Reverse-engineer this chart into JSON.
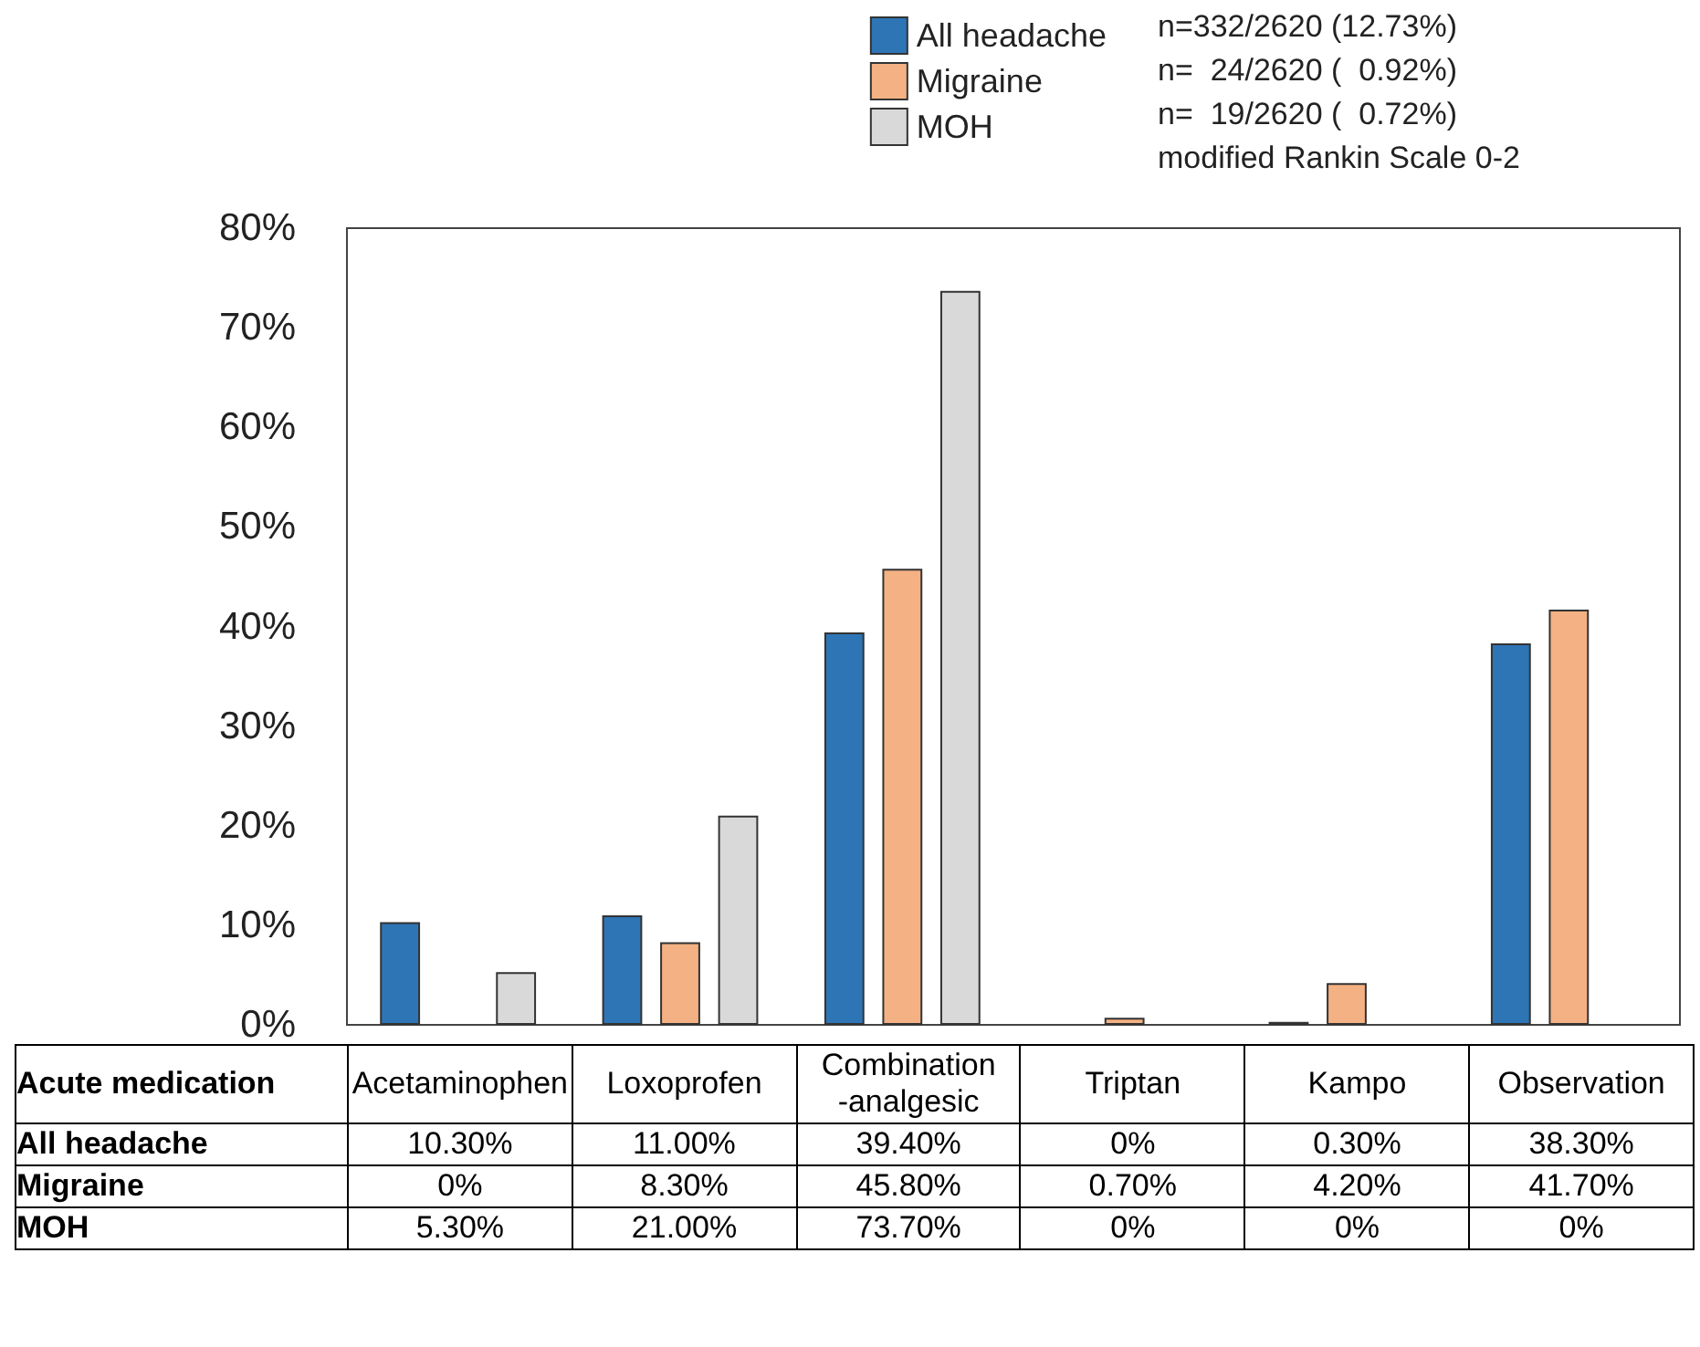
{
  "chart_data": {
    "type": "bar",
    "xlabel": "Acute medication",
    "categories": [
      "Acetaminophen",
      "Loxoprofen",
      "Combination\n-analgesic",
      "Triptan",
      "Kampo",
      "Observation"
    ],
    "series": [
      {
        "name": "All headache",
        "color": "#2e75b6",
        "values": [
          10.3,
          11.0,
          39.4,
          0,
          0.3,
          38.3
        ],
        "value_labels": [
          "10.30%",
          "11.00%",
          "39.40%",
          "0%",
          "0.30%",
          "38.30%"
        ]
      },
      {
        "name": "Migraine",
        "color": "#f4b183",
        "values": [
          0,
          8.3,
          45.8,
          0.7,
          4.2,
          41.7
        ],
        "value_labels": [
          "0%",
          "8.30%",
          "45.80%",
          "0.70%",
          "4.20%",
          "41.70%"
        ]
      },
      {
        "name": "MOH",
        "color": "#d9d9d9",
        "values": [
          5.3,
          21.0,
          73.7,
          0,
          0,
          0
        ],
        "value_labels": [
          "5.30%",
          "21.00%",
          "73.70%",
          "0%",
          "0%",
          "0%"
        ]
      }
    ],
    "ylim": [
      0,
      80
    ],
    "yticks": [
      {
        "value": 0,
        "label": "0%"
      },
      {
        "value": 10,
        "label": "10%"
      },
      {
        "value": 20,
        "label": "20%"
      },
      {
        "value": 30,
        "label": "30%"
      },
      {
        "value": 40,
        "label": "40%"
      },
      {
        "value": 50,
        "label": "50%"
      },
      {
        "value": 60,
        "label": "60%"
      },
      {
        "value": 70,
        "label": "70%"
      },
      {
        "value": 80,
        "label": "80%"
      }
    ],
    "grid": false,
    "legend": "top right",
    "annotations": [
      "n=332/2620 (12.73%)",
      "n=  24/2620 (  0.92%)",
      "n=  19/2620 (  0.72%)",
      "modified Rankin Scale 0-2"
    ]
  }
}
